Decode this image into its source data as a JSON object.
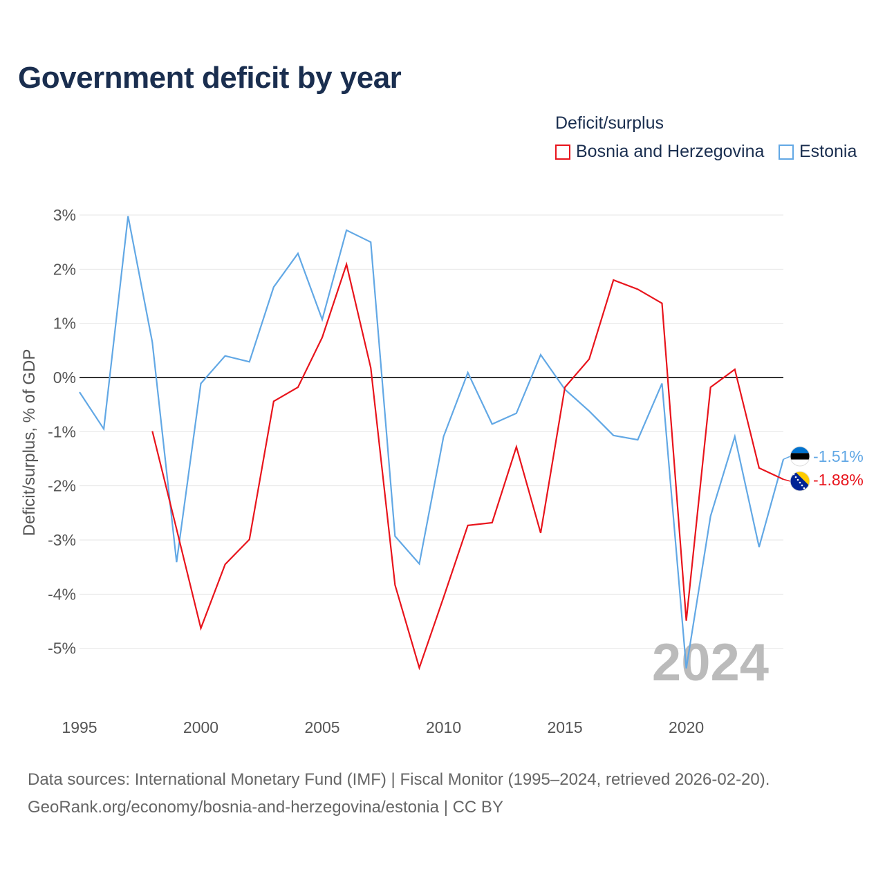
{
  "title": "Government deficit by year",
  "legend": {
    "title": "Deficit/surplus",
    "items": [
      {
        "name": "Bosnia and Herzegovina",
        "color": "#e8141c"
      },
      {
        "name": "Estonia",
        "color": "#62a8e5"
      }
    ]
  },
  "source": {
    "line1": "Data sources: International Monetary Fund (IMF) | Fiscal Monitor (1995–2024, retrieved 2026-02-20).",
    "line2": "GeoRank.org/economy/bosnia-and-herzegovina/estonia | CC BY"
  },
  "chart_data": {
    "type": "line",
    "title": "Government deficit by year",
    "xlabel": "",
    "ylabel": "Deficit/surplus, % of GDP",
    "x": [
      1995,
      1996,
      1997,
      1998,
      1999,
      2000,
      2001,
      2002,
      2003,
      2004,
      2005,
      2006,
      2007,
      2008,
      2009,
      2010,
      2011,
      2012,
      2013,
      2014,
      2015,
      2016,
      2017,
      2018,
      2019,
      2020,
      2021,
      2022,
      2023,
      2024
    ],
    "xlim": [
      1995,
      2024
    ],
    "ylim": [
      -6,
      3.3
    ],
    "xticks": [
      1995,
      2000,
      2005,
      2010,
      2015,
      2020
    ],
    "xtick_labels": [
      "1995",
      "2000",
      "2005",
      "2010",
      "2015",
      "2020"
    ],
    "yticks": [
      3,
      2,
      1,
      0,
      -1,
      -2,
      -3,
      -4,
      -5
    ],
    "ytick_labels": [
      "3%",
      "2%",
      "1%",
      "0%",
      "-1%",
      "-2%",
      "-3%",
      "-4%",
      "-5%"
    ],
    "grid": true,
    "watermark_year": "2024",
    "series": [
      {
        "name": "Bosnia and Herzegovina",
        "color": "#e8141c",
        "end_label": "-1.88%",
        "values": [
          null,
          null,
          null,
          -0.99,
          -2.8,
          -4.63,
          -3.45,
          -2.99,
          -0.44,
          -0.18,
          0.74,
          2.09,
          0.18,
          -3.83,
          -5.36,
          -4.06,
          -2.73,
          -2.68,
          -1.28,
          -2.87,
          -0.18,
          0.34,
          1.8,
          1.63,
          1.37,
          -4.49,
          -0.18,
          0.15,
          -1.67,
          -1.88
        ]
      },
      {
        "name": "Estonia",
        "color": "#62a8e5",
        "end_label": "-1.51%",
        "values": [
          -0.27,
          -0.95,
          2.98,
          0.65,
          -3.41,
          -0.11,
          0.4,
          0.29,
          1.67,
          2.29,
          1.07,
          2.72,
          2.5,
          -2.93,
          -3.44,
          -1.09,
          0.09,
          -0.86,
          -0.66,
          0.42,
          -0.22,
          -0.62,
          -1.07,
          -1.15,
          -0.11,
          -5.37,
          -2.56,
          -1.09,
          -3.13,
          -1.51
        ]
      }
    ]
  }
}
